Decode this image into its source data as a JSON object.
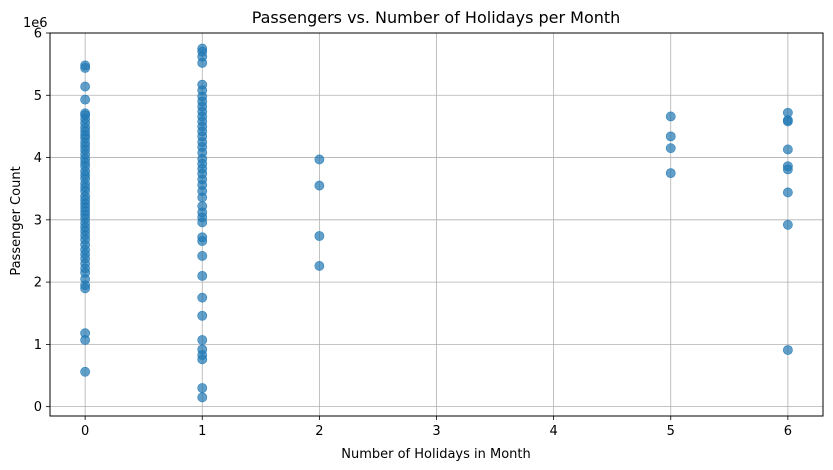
{
  "chart_data": {
    "type": "scatter",
    "title": "Passengers vs. Number of Holidays per Month",
    "xlabel": "Number of Holidays in Month",
    "ylabel": "Passenger Count",
    "y_offset_label": "1e6",
    "xlim": [
      -0.3,
      6.3
    ],
    "ylim": [
      -0.15,
      6.0
    ],
    "x_ticks": [
      "0",
      "1",
      "2",
      "3",
      "4",
      "5",
      "6"
    ],
    "y_ticks": [
      "0",
      "1",
      "2",
      "3",
      "4",
      "5",
      "6"
    ],
    "grid": true,
    "marker_color": "#1f77b4",
    "series": [
      {
        "values_unit": "millions",
        "points": [
          [
            0,
            5.48
          ],
          [
            0,
            5.44
          ],
          [
            0,
            5.14
          ],
          [
            0,
            4.93
          ],
          [
            0,
            4.71
          ],
          [
            0,
            4.68
          ],
          [
            0,
            4.62
          ],
          [
            0,
            4.55
          ],
          [
            0,
            4.48
          ],
          [
            0,
            4.42
          ],
          [
            0,
            4.36
          ],
          [
            0,
            4.31
          ],
          [
            0,
            4.24
          ],
          [
            0,
            4.18
          ],
          [
            0,
            4.12
          ],
          [
            0,
            4.05
          ],
          [
            0,
            3.98
          ],
          [
            0,
            3.92
          ],
          [
            0,
            3.86
          ],
          [
            0,
            3.78
          ],
          [
            0,
            3.72
          ],
          [
            0,
            3.66
          ],
          [
            0,
            3.58
          ],
          [
            0,
            3.52
          ],
          [
            0,
            3.46
          ],
          [
            0,
            3.38
          ],
          [
            0,
            3.32
          ],
          [
            0,
            3.26
          ],
          [
            0,
            3.2
          ],
          [
            0,
            3.14
          ],
          [
            0,
            3.08
          ],
          [
            0,
            3.02
          ],
          [
            0,
            2.95
          ],
          [
            0,
            2.88
          ],
          [
            0,
            2.82
          ],
          [
            0,
            2.75
          ],
          [
            0,
            2.68
          ],
          [
            0,
            2.6
          ],
          [
            0,
            2.52
          ],
          [
            0,
            2.45
          ],
          [
            0,
            2.38
          ],
          [
            0,
            2.3
          ],
          [
            0,
            2.22
          ],
          [
            0,
            2.15
          ],
          [
            0,
            2.05
          ],
          [
            0,
            1.95
          ],
          [
            0,
            1.9
          ],
          [
            0,
            1.18
          ],
          [
            0,
            1.07
          ],
          [
            0,
            0.56
          ],
          [
            1,
            5.75
          ],
          [
            1,
            5.7
          ],
          [
            1,
            5.62
          ],
          [
            1,
            5.52
          ],
          [
            1,
            5.17
          ],
          [
            1,
            5.08
          ],
          [
            1,
            4.98
          ],
          [
            1,
            4.9
          ],
          [
            1,
            4.82
          ],
          [
            1,
            4.74
          ],
          [
            1,
            4.66
          ],
          [
            1,
            4.58
          ],
          [
            1,
            4.5
          ],
          [
            1,
            4.42
          ],
          [
            1,
            4.34
          ],
          [
            1,
            4.25
          ],
          [
            1,
            4.17
          ],
          [
            1,
            4.08
          ],
          [
            1,
            3.98
          ],
          [
            1,
            3.9
          ],
          [
            1,
            3.82
          ],
          [
            1,
            3.74
          ],
          [
            1,
            3.65
          ],
          [
            1,
            3.56
          ],
          [
            1,
            3.46
          ],
          [
            1,
            3.36
          ],
          [
            1,
            3.22
          ],
          [
            1,
            3.12
          ],
          [
            1,
            3.04
          ],
          [
            1,
            2.96
          ],
          [
            1,
            2.72
          ],
          [
            1,
            2.66
          ],
          [
            1,
            2.42
          ],
          [
            1,
            2.1
          ],
          [
            1,
            1.75
          ],
          [
            1,
            1.46
          ],
          [
            1,
            1.07
          ],
          [
            1,
            0.92
          ],
          [
            1,
            0.83
          ],
          [
            1,
            0.76
          ],
          [
            1,
            0.3
          ],
          [
            1,
            0.15
          ],
          [
            2,
            3.97
          ],
          [
            2,
            3.55
          ],
          [
            2,
            2.74
          ],
          [
            2,
            2.26
          ],
          [
            5,
            4.66
          ],
          [
            5,
            4.34
          ],
          [
            5,
            4.15
          ],
          [
            5,
            3.75
          ],
          [
            6,
            4.72
          ],
          [
            6,
            4.6
          ],
          [
            6,
            4.58
          ],
          [
            6,
            4.13
          ],
          [
            6,
            3.86
          ],
          [
            6,
            3.81
          ],
          [
            6,
            3.44
          ],
          [
            6,
            2.92
          ],
          [
            6,
            0.91
          ]
        ]
      }
    ]
  }
}
